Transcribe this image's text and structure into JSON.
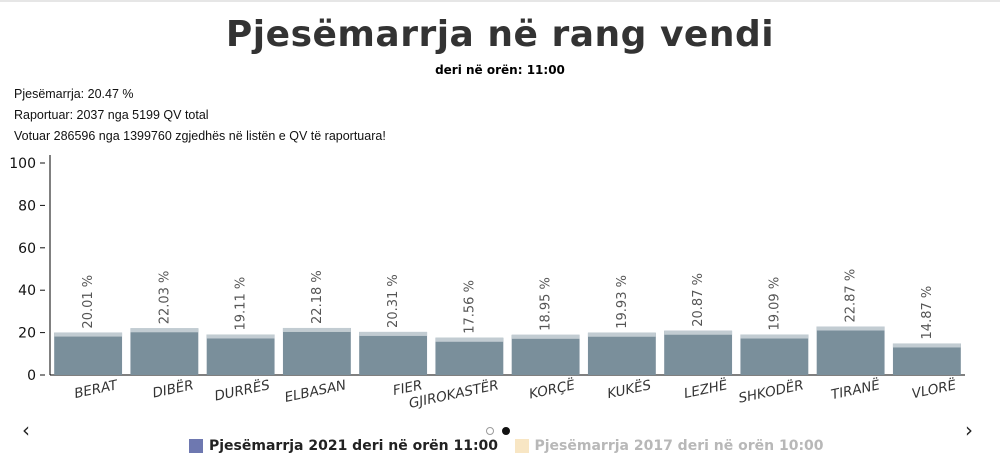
{
  "title": "Pjesëmarrja në rang vendi",
  "subtitle": "deri në orën: 11:00",
  "stats": {
    "line1": "Pjesëmarrja: 20.47 %",
    "line2": "Raportuar: 2037 nga 5199 QV total",
    "line3": "Votuar 286596 nga 1399760 zgjedhës në listën e QV të raportuara!"
  },
  "nav": {
    "prev_icon": "‹",
    "next_icon": "›"
  },
  "legend": [
    {
      "label": "Pjesëmarrja 2021 deri në orën 11:00",
      "color": "#6e78b0",
      "active": true
    },
    {
      "label": "Pjesëmarrja 2017 deri në orën 10:00",
      "color": "#f8e6c4",
      "active": false
    }
  ],
  "colors": {
    "bar": "#7a8f9b",
    "bar_top": "#c2ccd2",
    "axis": "#000000",
    "label": "#555555"
  },
  "chart_data": {
    "type": "bar",
    "categories": [
      "BERAT",
      "DIBËR",
      "DURRËS",
      "ELBASAN",
      "FIER",
      "GJIROKASTËR",
      "KORÇË",
      "KUKËS",
      "LEZHË",
      "SHKODËR",
      "TIRANË",
      "VLORË"
    ],
    "series": [
      {
        "name": "Pjesëmarrja 2021 deri në orën 11:00",
        "values": [
          20.01,
          22.03,
          19.11,
          22.18,
          20.31,
          17.56,
          18.95,
          19.93,
          20.87,
          19.09,
          22.87,
          14.87
        ]
      }
    ],
    "value_labels": [
      "20.01 %",
      "22.03 %",
      "19.11 %",
      "22.18 %",
      "20.31 %",
      "17.56 %",
      "18.95 %",
      "19.93 %",
      "20.87 %",
      "19.09 %",
      "22.87 %",
      "14.87 %"
    ],
    "y_ticks": [
      "0",
      "20",
      "40",
      "60",
      "80",
      "100"
    ],
    "ylim": [
      0,
      100
    ],
    "legend_position": "bottom",
    "grid": false
  }
}
